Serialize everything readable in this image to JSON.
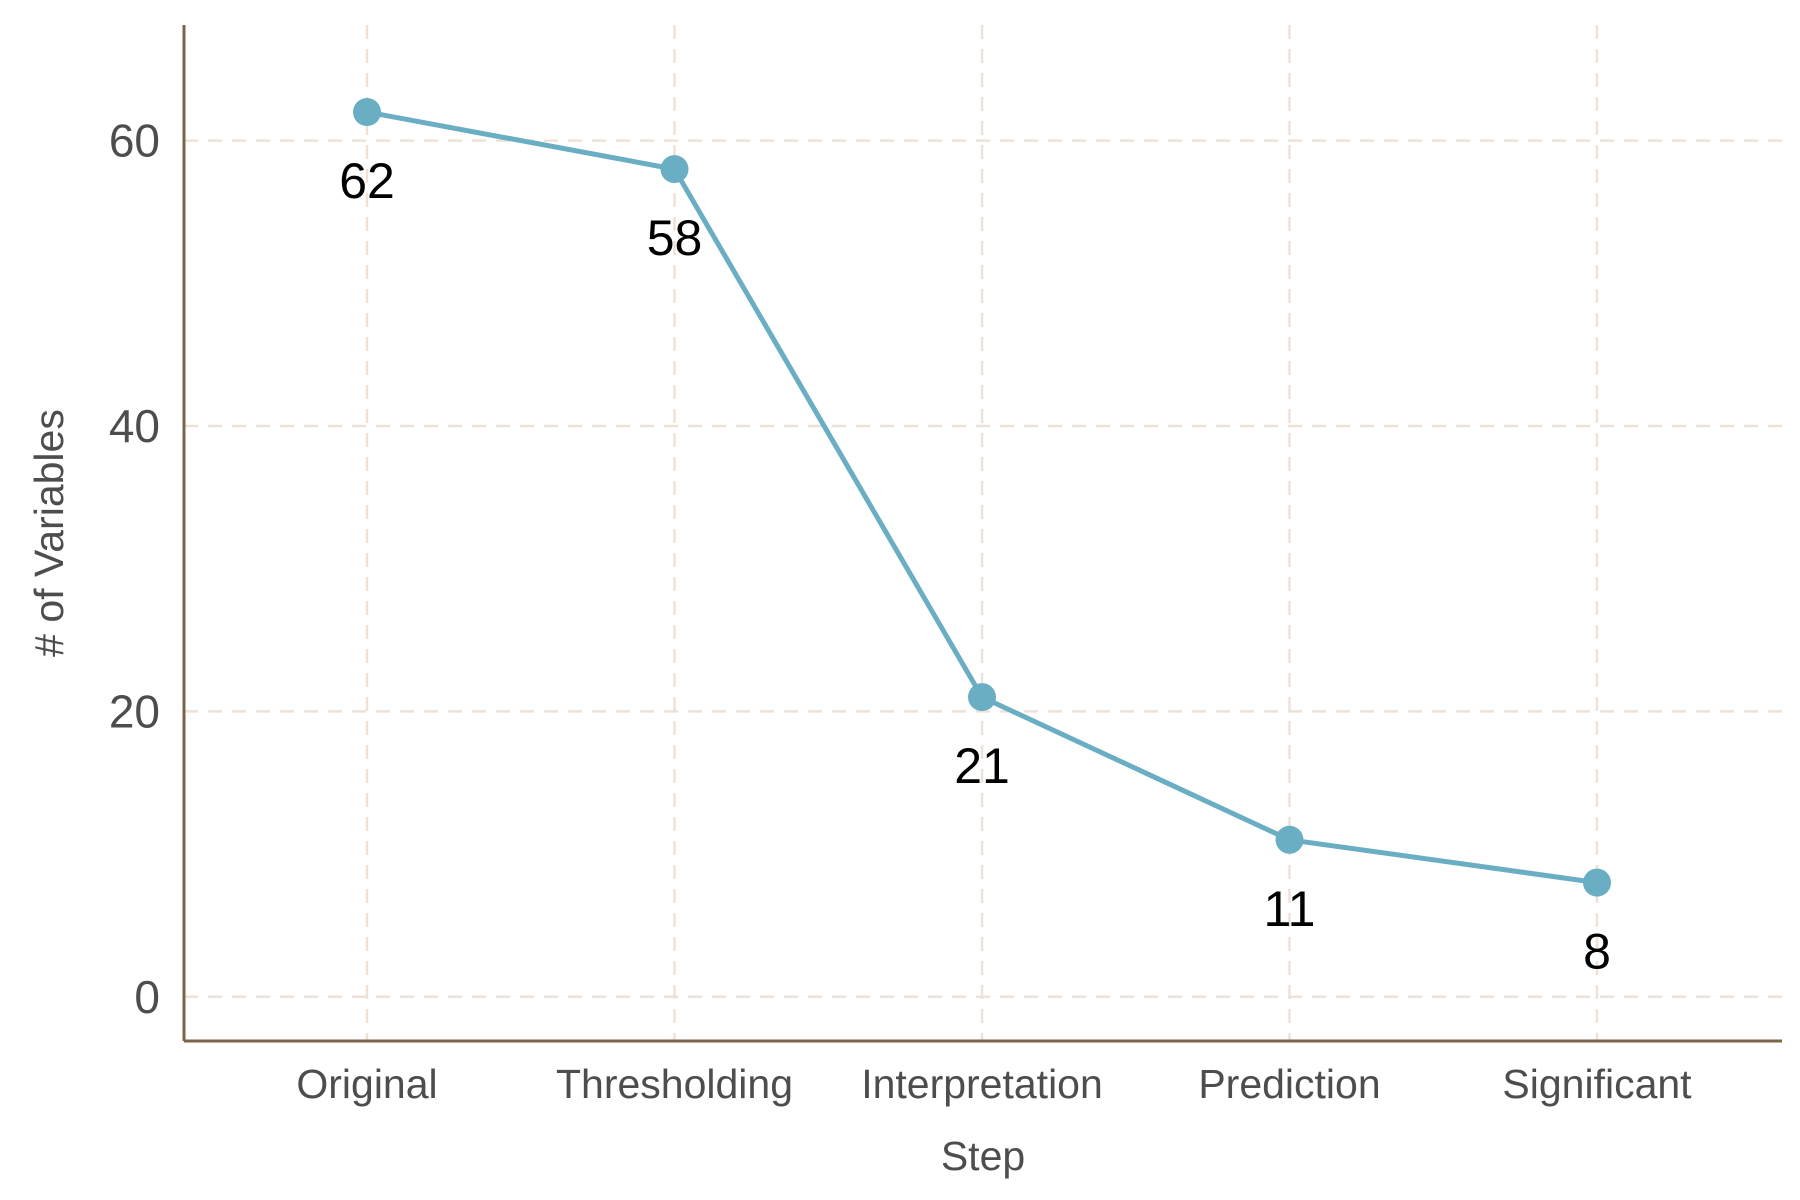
{
  "chart_data": {
    "type": "line",
    "categories": [
      "Original",
      "Thresholding",
      "Interpretation",
      "Prediction",
      "Significant"
    ],
    "series": [
      {
        "values": [
          62,
          58,
          21,
          11,
          8
        ]
      }
    ],
    "data_labels": [
      "62",
      "58",
      "21",
      "11",
      "8"
    ],
    "y_ticks": [
      0,
      20,
      40,
      60
    ],
    "xlabel": "Step",
    "ylabel": "# of Variables",
    "ylim": [
      -3.1,
      68.1
    ],
    "grid": true,
    "grid_style": "dashed",
    "legend": "none",
    "colors": {
      "series": "#6aaec4",
      "grid": "#eee2d8",
      "axis": "#7a6548",
      "tick_text": "#4d4d4d",
      "label_text": "#000000"
    }
  }
}
